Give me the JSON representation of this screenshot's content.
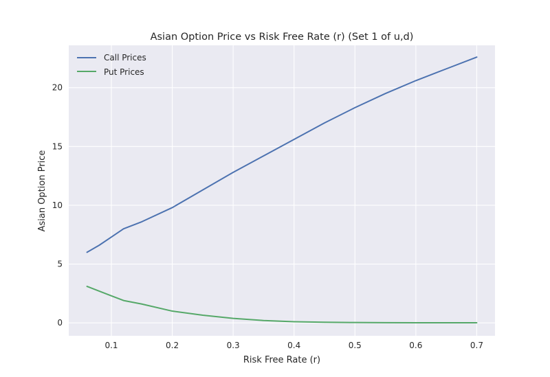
{
  "chart_data": {
    "type": "line",
    "title": "Asian Option Price vs Risk Free Rate (r) (Set 1 of u,d)",
    "xlabel": "Risk Free Rate (r)",
    "ylabel": "Asian Option Price",
    "xlim": [
      0.03,
      0.73
    ],
    "ylim": [
      -1.1,
      23.6
    ],
    "x_ticks": [
      0.1,
      0.2,
      0.3,
      0.4,
      0.5,
      0.6,
      0.7
    ],
    "x_tick_labels": [
      "0.1",
      "0.2",
      "0.3",
      "0.4",
      "0.5",
      "0.6",
      "0.7"
    ],
    "y_ticks": [
      0,
      5,
      10,
      15,
      20
    ],
    "y_tick_labels": [
      "0",
      "5",
      "10",
      "15",
      "20"
    ],
    "grid": true,
    "legend_position": "top-left",
    "background_color": "#eaeaf2",
    "x": [
      0.06,
      0.08,
      0.1,
      0.12,
      0.15,
      0.2,
      0.25,
      0.3,
      0.35,
      0.4,
      0.45,
      0.5,
      0.55,
      0.6,
      0.65,
      0.7
    ],
    "series": [
      {
        "name": "Call Prices",
        "color": "#4c72b0",
        "values": [
          6.0,
          6.6,
          7.3,
          8.0,
          8.6,
          9.8,
          11.3,
          12.8,
          14.2,
          15.6,
          17.0,
          18.3,
          19.5,
          20.6,
          21.6,
          22.6
        ]
      },
      {
        "name": "Put Prices",
        "color": "#55a868",
        "values": [
          3.1,
          2.7,
          2.3,
          1.9,
          1.6,
          1.0,
          0.65,
          0.38,
          0.2,
          0.1,
          0.05,
          0.03,
          0.02,
          0.01,
          0.01,
          0.01
        ]
      }
    ]
  }
}
